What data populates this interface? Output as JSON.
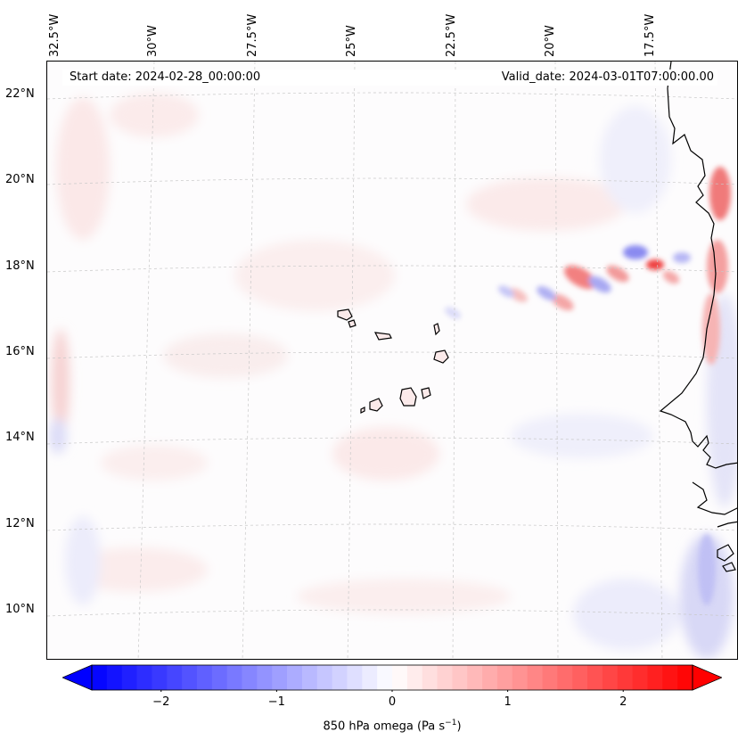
{
  "map": {
    "start_date": "Start date: 2024-02-28_00:00:00",
    "valid_date": "Valid_date: 2024-03-01T07:00:00.00",
    "longitude_labels": [
      "32.5°W",
      "30°W",
      "27.5°W",
      "25°W",
      "22.5°W",
      "20°W",
      "17.5°W"
    ],
    "latitude_labels": [
      "22°N",
      "20°N",
      "18°N",
      "16°N",
      "14°N",
      "12°N",
      "10°N"
    ],
    "colors": {
      "positive": "#ff0000",
      "negative": "#0000ff",
      "coast": "#000000",
      "grid": "#b0b0b0"
    }
  },
  "colorbar": {
    "label_text": "850 hPa omega (Pa s",
    "label_sup": "−1",
    "label_close": ")",
    "ticks": [
      "−2",
      "−1",
      "0",
      "1",
      "2"
    ],
    "tick_values": [
      -2,
      -1,
      0,
      1,
      2
    ],
    "range": [
      -2.6,
      2.6
    ],
    "colormap": "bwr"
  }
}
